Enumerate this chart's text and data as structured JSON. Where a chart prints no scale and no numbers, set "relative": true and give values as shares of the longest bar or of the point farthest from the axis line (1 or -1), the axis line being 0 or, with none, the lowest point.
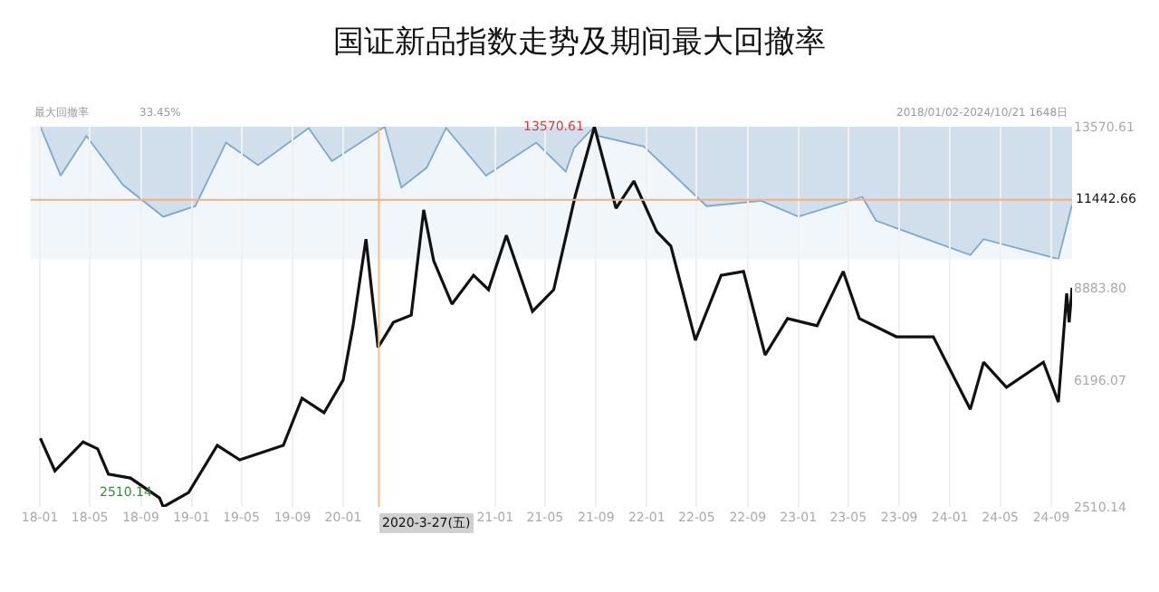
{
  "chart_data": [
    {
      "type": "area",
      "relative": true,
      "title": "国证新品指数走势及期间最大回撤率",
      "color": "#7fa7c9",
      "grid": "x",
      "xlim": [
        "2017-12-10",
        "2024-10-21"
      ],
      "annotations": [
        "最大回撤率",
        "33.45%",
        "2018/01/02-2024/10/21 1648日"
      ],
      "x": [
        "2018-01-02",
        "2018-02-20",
        "2018-04-23",
        "2018-07-20",
        "2018-10-25",
        "2019-01-10",
        "2019-03-25",
        "2019-06-10",
        "2019-10-10",
        "2019-12-05",
        "2020-04-10",
        "2020-05-20",
        "2020-07-20",
        "2020-09-05",
        "2020-12-10",
        "2021-04-10",
        "2021-06-20",
        "2021-07-10",
        "2021-08-28",
        "2021-09-06",
        "2021-12-25",
        "2022-05-25",
        "2022-10-04",
        "2023-01-01",
        "2023-06-04",
        "2023-07-07",
        "2024-02-19",
        "2024-03-22",
        "2024-09-18",
        "2024-10-21"
      ],
      "values": [
        0,
        -0.37,
        -0.07,
        -0.44,
        -0.68,
        -0.6,
        -0.12,
        -0.29,
        -0.01,
        -0.26,
        0,
        -0.46,
        -0.31,
        -0.01,
        -0.37,
        -0.12,
        -0.34,
        -0.16,
        0,
        -0.07,
        -0.15,
        -0.6,
        -0.56,
        -0.68,
        -0.53,
        -0.71,
        -0.97,
        -0.85,
        -1,
        -0.59
      ]
    },
    {
      "type": "line",
      "color": "#111111",
      "grid": "x",
      "xlim": [
        "2017-12-10",
        "2024-10-21"
      ],
      "ylim": [
        2510.14,
        13570.61
      ],
      "yticks": [
        2510.14,
        6196.07,
        {
          "value": 8883.8,
          "label": "8883.80"
        },
        13570.61
      ],
      "xticks": [
        {
          "value": "2018-01-01",
          "label": "18-01"
        },
        {
          "value": "2018-05-01",
          "label": "18-05"
        },
        {
          "value": "2018-09-01",
          "label": "18-09"
        },
        {
          "value": "2019-01-01",
          "label": "19-01"
        },
        {
          "value": "2019-05-01",
          "label": "19-05"
        },
        {
          "value": "2019-09-01",
          "label": "19-09"
        },
        {
          "value": "2020-01-01",
          "label": "20-01"
        },
        {
          "value": "2021-01-01",
          "label": "21-01"
        },
        {
          "value": "2021-05-01",
          "label": "21-05"
        },
        {
          "value": "2021-09-01",
          "label": "21-09"
        },
        {
          "value": "2022-01-01",
          "label": "22-01"
        },
        {
          "value": "2022-05-01",
          "label": "22-05"
        },
        {
          "value": "2022-09-01",
          "label": "22-09"
        },
        {
          "value": "2023-01-01",
          "label": "23-01"
        },
        {
          "value": "2023-05-01",
          "label": "23-05"
        },
        {
          "value": "2023-09-01",
          "label": "23-09"
        },
        {
          "value": "2024-01-01",
          "label": "24-01"
        },
        {
          "value": "2024-05-01",
          "label": "24-05"
        },
        {
          "value": "2024-09-01",
          "label": "24-09"
        }
      ],
      "ref_lines": [
        {
          "axis": "x",
          "value": "2020-03-27",
          "label": "2020-3-27(五)",
          "color": "#f0c090"
        },
        {
          "axis": "y",
          "value": 11442.66,
          "label": "11442.66",
          "color": "#f0b080"
        }
      ],
      "annotations": [
        {
          "text": "2510.14",
          "x": "2018-10-25",
          "y": 2510.14
        },
        {
          "text": "13570.61",
          "x": "2021-08-28",
          "y": 13570.61
        }
      ],
      "x": [
        "2018-01-02",
        "2018-02-06",
        "2018-04-15",
        "2018-05-20",
        "2018-06-15",
        "2018-08-07",
        "2018-10-16",
        "2018-10-25",
        "2018-12-25",
        "2019-03-04",
        "2019-04-27",
        "2019-08-10",
        "2019-09-24",
        "2019-11-16",
        "2020-01-01",
        "2020-01-25",
        "2020-02-25",
        "2020-03-25",
        "2020-05-01",
        "2020-06-13",
        "2020-07-13",
        "2020-08-06",
        "2020-09-19",
        "2020-11-10",
        "2020-12-16",
        "2021-01-28",
        "2021-04-01",
        "2021-05-22",
        "2021-07-13",
        "2021-08-28",
        "2021-10-19",
        "2021-12-01",
        "2022-01-25",
        "2022-02-28",
        "2022-04-28",
        "2022-06-29",
        "2022-08-22",
        "2022-10-13",
        "2022-12-06",
        "2023-02-15",
        "2023-04-19",
        "2023-05-28",
        "2023-08-25",
        "2023-11-22",
        "2024-02-19",
        "2024-03-22",
        "2024-05-16",
        "2024-08-13",
        "2024-09-18",
        "2024-10-08",
        "2024-10-14",
        "2024-10-21"
      ],
      "values": [
        4510,
        3560,
        4400,
        4200,
        3460,
        3350,
        2770,
        2510.14,
        2930,
        4300,
        3880,
        4300,
        5670,
        5250,
        6200,
        7780,
        10300,
        7150,
        7880,
        8090,
        11150,
        9670,
        8410,
        9250,
        8830,
        10410,
        8200,
        8830,
        11570,
        13570.61,
        11200,
        11990,
        10520,
        10100,
        7360,
        9250,
        9360,
        6930,
        7990,
        7780,
        9360,
        7990,
        7460,
        7460,
        5350,
        6720,
        5990,
        6720,
        5560,
        8720,
        7880,
        8883.8
      ]
    }
  ]
}
